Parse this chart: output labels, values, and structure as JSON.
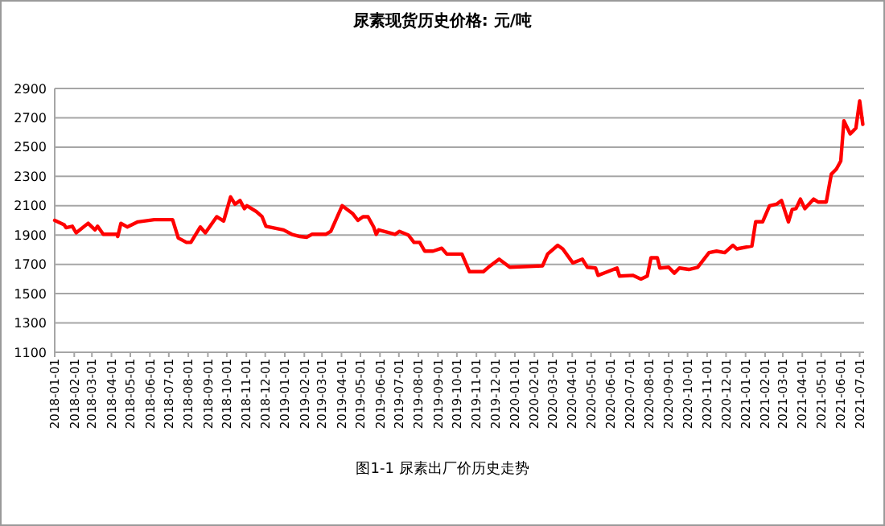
{
  "chart_data": {
    "type": "line",
    "title": "尿素现货历史价格: 元/吨",
    "annotations": [
      "图1-1 尿素出厂价历史走势"
    ],
    "x": [
      "2018-01-01",
      "2018-01-16",
      "2018-01-19",
      "2018-01-29",
      "2018-02-04",
      "2018-02-23",
      "2018-03-06",
      "2018-03-10",
      "2018-03-19",
      "2018-04-10",
      "2018-04-11",
      "2018-04-16",
      "2018-04-26",
      "2018-05-13",
      "2018-06-08",
      "2018-07-07",
      "2018-07-16",
      "2018-07-29",
      "2018-08-05",
      "2018-08-20",
      "2018-08-28",
      "2018-09-15",
      "2018-09-26",
      "2018-10-07",
      "2018-10-14",
      "2018-10-22",
      "2018-10-29",
      "2018-11-02",
      "2018-11-17",
      "2018-11-26",
      "2018-12-02",
      "2018-12-30",
      "2019-01-12",
      "2019-01-25",
      "2019-02-05",
      "2019-02-13",
      "2019-03-07",
      "2019-03-15",
      "2019-04-02",
      "2019-04-19",
      "2019-04-27",
      "2019-05-05",
      "2019-05-13",
      "2019-05-22",
      "2019-05-26",
      "2019-05-30",
      "2019-06-25",
      "2019-07-02",
      "2019-07-16",
      "2019-07-25",
      "2019-08-03",
      "2019-08-11",
      "2019-08-24",
      "2019-09-07",
      "2019-09-15",
      "2019-10-09",
      "2019-10-21",
      "2019-11-12",
      "2019-11-20",
      "2019-12-07",
      "2019-12-24",
      "2020-02-14",
      "2020-02-22",
      "2020-03-09",
      "2020-03-17",
      "2020-04-02",
      "2020-04-17",
      "2020-04-25",
      "2020-05-08",
      "2020-05-12",
      "2020-05-24",
      "2020-06-11",
      "2020-06-15",
      "2020-07-06",
      "2020-07-19",
      "2020-07-29",
      "2020-08-04",
      "2020-08-14",
      "2020-08-18",
      "2020-09-01",
      "2020-09-10",
      "2020-09-18",
      "2020-10-03",
      "2020-10-17",
      "2020-11-04",
      "2020-11-16",
      "2020-11-29",
      "2020-12-12",
      "2020-12-18",
      "2021-01-11",
      "2021-01-17",
      "2021-01-28",
      "2021-02-08",
      "2021-02-19",
      "2021-02-27",
      "2021-03-10",
      "2021-03-16",
      "2021-03-22",
      "2021-03-29",
      "2021-04-05",
      "2021-04-19",
      "2021-04-26",
      "2021-05-09",
      "2021-05-17",
      "2021-05-25",
      "2021-06-01",
      "2021-06-06",
      "2021-06-16",
      "2021-06-25",
      "2021-07-01",
      "2021-07-06"
    ],
    "series": [
      {
        "color": "#ff0000",
        "values": [
          2000,
          1970,
          1950,
          1960,
          1915,
          1980,
          1935,
          1960,
          1905,
          1905,
          1890,
          1980,
          1955,
          1990,
          2005,
          2005,
          1880,
          1850,
          1850,
          1955,
          1915,
          2025,
          1995,
          2160,
          2110,
          2135,
          2080,
          2100,
          2060,
          2025,
          1960,
          1935,
          1905,
          1890,
          1885,
          1905,
          1905,
          1925,
          2100,
          2045,
          2000,
          2025,
          2025,
          1955,
          1905,
          1935,
          1905,
          1925,
          1900,
          1850,
          1850,
          1790,
          1790,
          1810,
          1770,
          1770,
          1650,
          1650,
          1680,
          1735,
          1680,
          1690,
          1770,
          1830,
          1805,
          1710,
          1735,
          1680,
          1675,
          1625,
          1645,
          1675,
          1620,
          1625,
          1600,
          1620,
          1745,
          1745,
          1675,
          1680,
          1640,
          1675,
          1665,
          1680,
          1780,
          1790,
          1780,
          1830,
          1805,
          1825,
          1990,
          1990,
          2100,
          2110,
          2135,
          1990,
          2075,
          2080,
          2145,
          2080,
          2145,
          2125,
          2125,
          2315,
          2350,
          2405,
          2680,
          2590,
          2630,
          2815,
          2655
        ]
      }
    ],
    "xlim": [
      "2018-01-01",
      "2021-07-08"
    ],
    "xticks": [
      "2018-01-01",
      "2018-02-01",
      "2018-03-01",
      "2018-04-01",
      "2018-05-01",
      "2018-06-01",
      "2018-07-01",
      "2018-08-01",
      "2018-09-01",
      "2018-10-01",
      "2018-11-01",
      "2018-12-01",
      "2019-01-01",
      "2019-02-01",
      "2019-03-01",
      "2019-04-01",
      "2019-05-01",
      "2019-06-01",
      "2019-07-01",
      "2019-08-01",
      "2019-09-01",
      "2019-10-01",
      "2019-11-01",
      "2019-12-01",
      "2020-01-01",
      "2020-02-01",
      "2020-03-01",
      "2020-04-01",
      "2020-05-01",
      "2020-06-01",
      "2020-07-01",
      "2020-08-01",
      "2020-09-01",
      "2020-10-01",
      "2020-11-01",
      "2020-12-01",
      "2021-01-01",
      "2021-02-01",
      "2021-03-01",
      "2021-04-01",
      "2021-05-01",
      "2021-06-01",
      "2021-07-01"
    ],
    "ylim": [
      1100,
      2900
    ],
    "yticks": [
      1100,
      1300,
      1500,
      1700,
      1900,
      2100,
      2300,
      2500,
      2700,
      2900
    ],
    "grid": "y",
    "marker": "none",
    "line_style": "solid"
  }
}
